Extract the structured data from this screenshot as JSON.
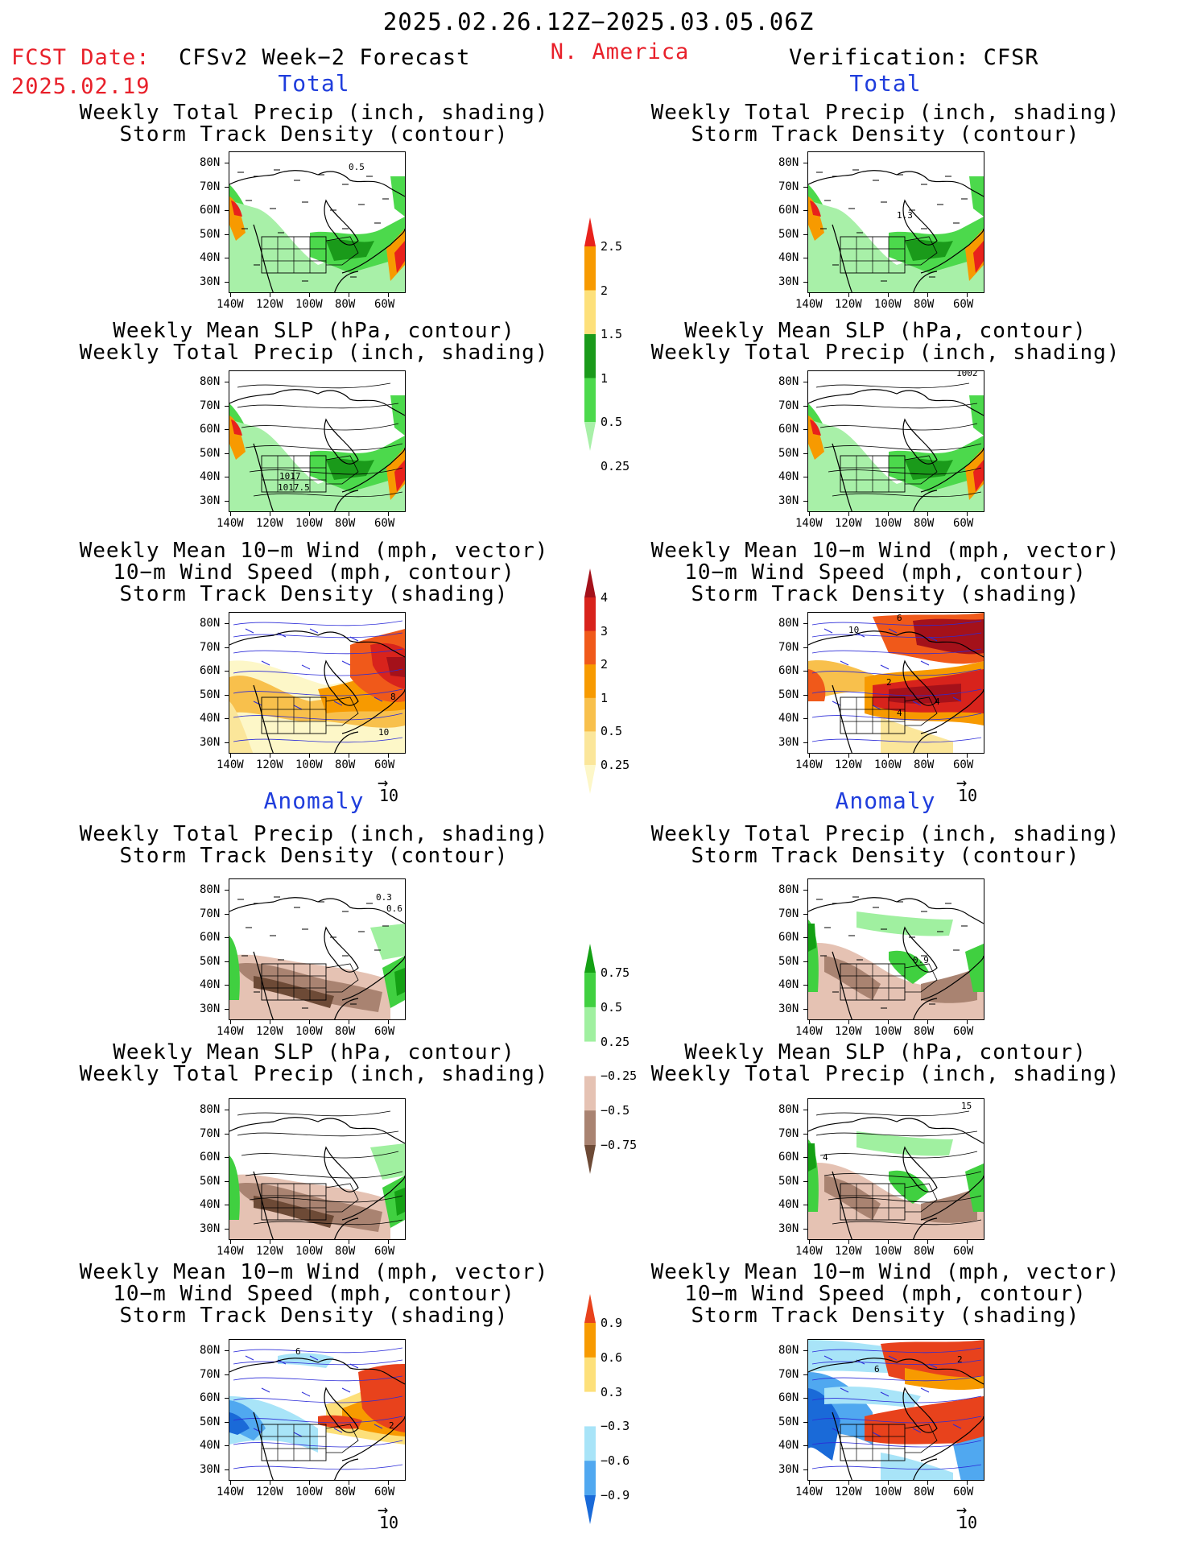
{
  "header": {
    "period": "2025.02.26.12Z−2025.03.05.06Z",
    "fcst_label": "FCST Date:",
    "fcst_date": "2025.02.19",
    "model_title": "CFSv2 Week−2 Forecast",
    "region": "N. America",
    "verification": "Verification: CFSR"
  },
  "sections": {
    "total": "Total",
    "anomaly": "Anomaly"
  },
  "captions": {
    "precip_storm": [
      "Weekly Total Precip (inch, shading)",
      "Storm Track Density (contour)"
    ],
    "slp_precip": [
      "Weekly Mean SLP (hPa, contour)",
      "Weekly Total Precip (inch, shading)"
    ],
    "wind_storm": [
      "Weekly Mean 10−m Wind (mph, vector)",
      "10−m Wind Speed (mph, contour)",
      "Storm Track Density (shading)"
    ]
  },
  "axes": {
    "lat_ticks": [
      "80N",
      "70N",
      "60N",
      "50N",
      "40N",
      "30N"
    ],
    "lon_ticks": [
      "140W",
      "120W",
      "100W",
      "80W",
      "60W"
    ]
  },
  "vector_ref": "10",
  "colorbars": {
    "precip_total": {
      "labels": [
        "2.5",
        "2",
        "1.5",
        "1",
        "0.5",
        "0.25"
      ],
      "colors": [
        "#e8221c",
        "#f79a00",
        "#fde07a",
        "#1a9a1a",
        "#4cd94c",
        "#a8f0a8"
      ]
    },
    "storm_total": {
      "labels": [
        "4",
        "3",
        "2",
        "1",
        "0.5",
        "0.25"
      ],
      "colors": [
        "#a4111a",
        "#d8231c",
        "#f0591a",
        "#f79a00",
        "#f8c04c",
        "#fbe69a",
        "#fdf7c8"
      ]
    },
    "precip_anom": {
      "labels": [
        "0.75",
        "0.5",
        "0.25",
        "−0.25",
        "−0.5",
        "−0.75"
      ],
      "colors": [
        "#14a014",
        "#40d040",
        "#a0f0a0",
        "#ffffff",
        "#e5c2b3",
        "#a98371",
        "#6d4a36"
      ]
    },
    "storm_anom": {
      "labels": [
        "0.9",
        "0.6",
        "0.3",
        "−0.3",
        "−0.6",
        "−0.9"
      ],
      "colors": [
        "#e8421c",
        "#f79a00",
        "#fde07a",
        "#ffffff",
        "#a8e4f8",
        "#50a8f0",
        "#1a6ad8"
      ]
    }
  },
  "panel_labels": {
    "L1": "0.5",
    "R1": "1.3",
    "L2a": "1017.5",
    "L2b": "1017",
    "R2": "1002",
    "L3a": "8",
    "L3b": "10",
    "R3a": "6",
    "R3b": "10",
    "R3c": "2",
    "R3d": "4",
    "R3e": "4",
    "L4a": "0.3",
    "L4b": "0.6",
    "R4": "0.9",
    "R5": "15",
    "R5b": "4",
    "L6a": "2",
    "L6b": "6",
    "R6a": "2",
    "R6b": "6"
  }
}
